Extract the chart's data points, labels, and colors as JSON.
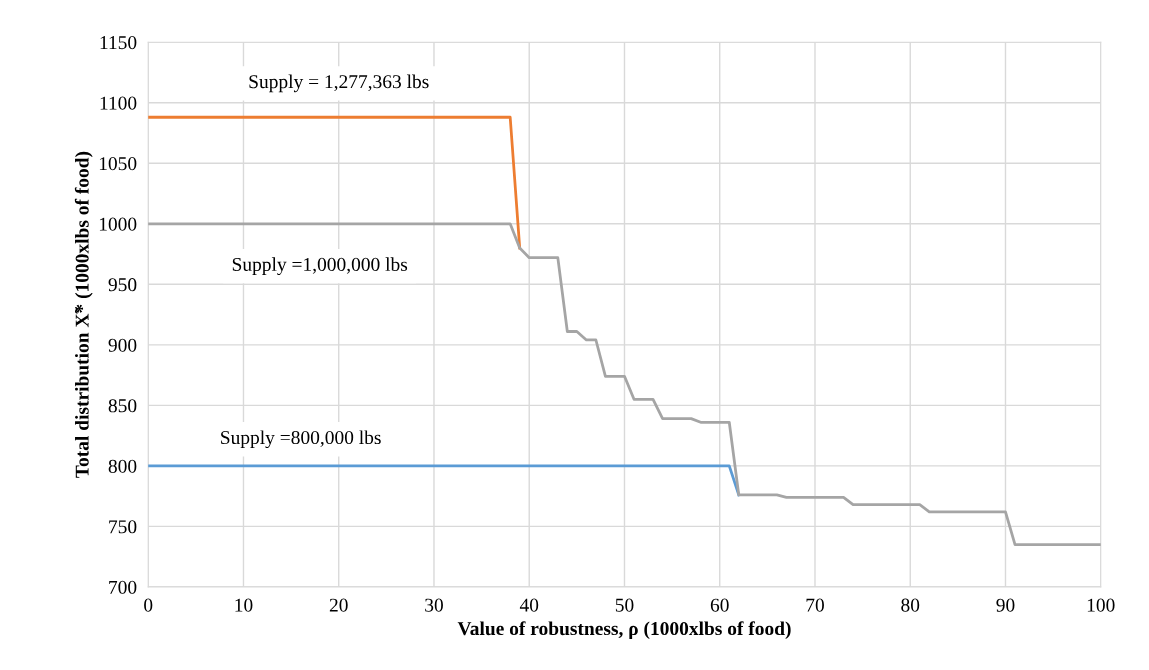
{
  "chart_data": {
    "type": "line",
    "xlabel": "Value of robustness, ρ (1000xlbs of food)",
    "ylabel": "Total distribution X̃* (1000xlbs of food)",
    "xlim": [
      0,
      100
    ],
    "xticks": [
      0,
      10,
      20,
      30,
      40,
      50,
      60,
      70,
      80,
      90,
      100
    ],
    "ylim": [
      700,
      1150
    ],
    "yticks": [
      700,
      750,
      800,
      850,
      900,
      950,
      1000,
      1050,
      1100,
      1150
    ],
    "grid": true,
    "series": [
      {
        "name": "Supply = 1,277,363 lbs",
        "color": "#ed7d31",
        "x": [
          0,
          38,
          39
        ],
        "values": [
          1088,
          1088,
          980
        ]
      },
      {
        "name": "Supply =800,000 lbs",
        "color": "#5b9bd5",
        "x": [
          0,
          61,
          62
        ],
        "values": [
          800,
          800,
          776
        ]
      },
      {
        "name": "Supply =1,000,000 lbs",
        "color": "#a5a5a5",
        "x": [
          0,
          38,
          39,
          40,
          43,
          44,
          45,
          46,
          47,
          48,
          50,
          51,
          53,
          54,
          57,
          58,
          61,
          62,
          66,
          67,
          73,
          74,
          81,
          82,
          90,
          91,
          100
        ],
        "values": [
          1000,
          1000,
          980,
          972,
          972,
          911,
          911,
          904,
          904,
          874,
          874,
          855,
          855,
          839,
          839,
          836,
          836,
          776,
          776,
          774,
          774,
          768,
          768,
          762,
          762,
          735,
          735
        ]
      }
    ]
  }
}
